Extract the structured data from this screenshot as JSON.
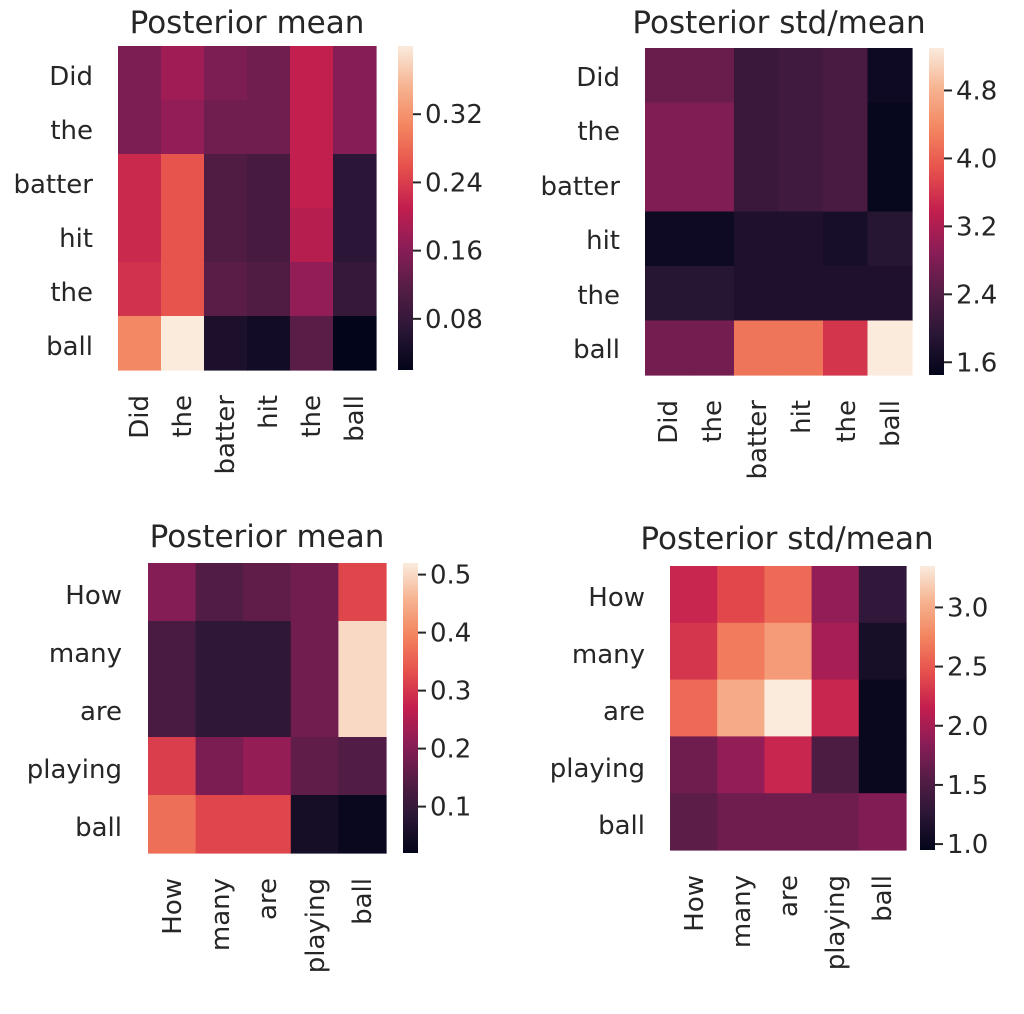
{
  "chart_data": [
    {
      "type": "heatmap",
      "title": "Posterior mean",
      "rows": [
        "Did",
        "the",
        "batter",
        "hit",
        "the",
        "ball"
      ],
      "cols": [
        "Did",
        "the",
        "batter",
        "hit",
        "the",
        "ball"
      ],
      "values": [
        [
          0.15,
          0.18,
          0.15,
          0.14,
          0.21,
          0.16
        ],
        [
          0.15,
          0.17,
          0.14,
          0.14,
          0.21,
          0.16
        ],
        [
          0.22,
          0.26,
          0.11,
          0.1,
          0.21,
          0.07
        ],
        [
          0.22,
          0.26,
          0.11,
          0.1,
          0.2,
          0.07
        ],
        [
          0.23,
          0.26,
          0.12,
          0.11,
          0.17,
          0.08
        ],
        [
          0.31,
          0.4,
          0.05,
          0.04,
          0.12,
          0.02
        ]
      ],
      "colorbar": {
        "min": 0.02,
        "max": 0.4,
        "ticks": [
          0.08,
          0.16,
          0.24,
          0.32
        ],
        "tick_labels": [
          "0.08",
          "0.16",
          "0.24",
          "0.32"
        ]
      },
      "colorbar_location": "right"
    },
    {
      "type": "heatmap",
      "title": "Posterior std/mean",
      "rows": [
        "Did",
        "the",
        "batter",
        "hit",
        "the",
        "ball"
      ],
      "cols": [
        "Did",
        "the",
        "batter",
        "hit",
        "the",
        "ball"
      ],
      "values": [
        [
          2.6,
          2.6,
          2.1,
          2.2,
          2.3,
          1.6
        ],
        [
          2.8,
          2.8,
          2.1,
          2.2,
          2.3,
          1.5
        ],
        [
          2.8,
          2.8,
          2.1,
          2.2,
          2.3,
          1.5
        ],
        [
          1.6,
          1.6,
          1.8,
          1.8,
          1.7,
          1.9
        ],
        [
          1.9,
          1.9,
          1.8,
          1.8,
          1.8,
          1.8
        ],
        [
          2.7,
          2.7,
          4.2,
          4.2,
          3.6,
          5.3
        ]
      ],
      "colorbar": {
        "min": 1.45,
        "max": 5.3,
        "ticks": [
          1.6,
          2.4,
          3.2,
          4.0,
          4.8
        ],
        "tick_labels": [
          "1.6",
          "2.4",
          "3.2",
          "4.0",
          "4.8"
        ]
      },
      "colorbar_location": "right"
    },
    {
      "type": "heatmap",
      "title": "Posterior mean",
      "rows": [
        "How",
        "many",
        "are",
        "playing",
        "ball"
      ],
      "cols": [
        "How",
        "many",
        "are",
        "playing",
        "ball"
      ],
      "values": [
        [
          0.2,
          0.14,
          0.16,
          0.18,
          0.32
        ],
        [
          0.13,
          0.09,
          0.09,
          0.18,
          0.5
        ],
        [
          0.13,
          0.09,
          0.09,
          0.18,
          0.5
        ],
        [
          0.31,
          0.19,
          0.22,
          0.16,
          0.14
        ],
        [
          0.37,
          0.32,
          0.32,
          0.05,
          0.03
        ]
      ],
      "colorbar": {
        "min": 0.02,
        "max": 0.52,
        "ticks": [
          0.1,
          0.2,
          0.3,
          0.4,
          0.5
        ],
        "tick_labels": [
          "0.1",
          "0.2",
          "0.3",
          "0.4",
          "0.5"
        ]
      },
      "colorbar_location": "right"
    },
    {
      "type": "heatmap",
      "title": "Posterior std/mean",
      "rows": [
        "How",
        "many",
        "are",
        "playing",
        "ball"
      ],
      "cols": [
        "How",
        "many",
        "are",
        "playing",
        "ball"
      ],
      "values": [
        [
          2.2,
          2.4,
          2.6,
          1.9,
          1.3
        ],
        [
          2.3,
          2.7,
          2.9,
          2.0,
          1.1
        ],
        [
          2.6,
          3.0,
          3.35,
          2.2,
          1.0
        ],
        [
          1.7,
          1.9,
          2.2,
          1.5,
          1.0
        ],
        [
          1.6,
          1.7,
          1.7,
          1.7,
          1.8
        ]
      ],
      "colorbar": {
        "min": 0.95,
        "max": 3.35,
        "ticks": [
          1.0,
          1.5,
          2.0,
          2.5,
          3.0
        ],
        "tick_labels": [
          "1.0",
          "1.5",
          "2.0",
          "2.5",
          "3.0"
        ]
      },
      "colorbar_location": "right"
    }
  ]
}
